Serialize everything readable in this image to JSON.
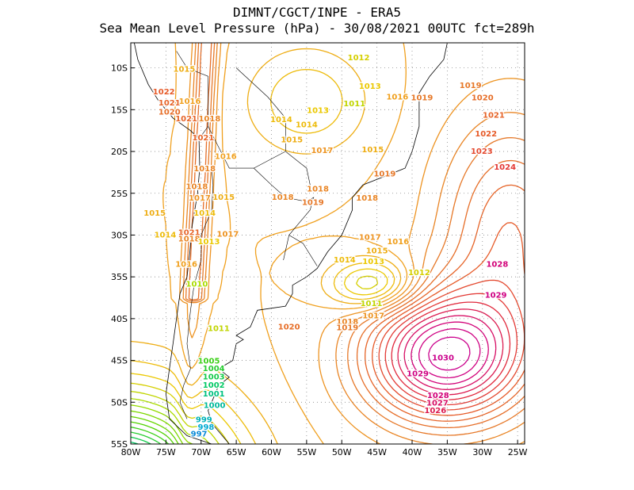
{
  "header": {
    "line1": "DIMNT/CGCT/INPE -  ERA5",
    "line2": "Sea Mean Level Pressure (hPa) - 30/08/2021 00UTC fct=289h"
  },
  "map": {
    "lon_ticks": [
      "80W",
      "75W",
      "70W",
      "65W",
      "60W",
      "55W",
      "50W",
      "45W",
      "40W",
      "35W",
      "30W",
      "25W"
    ],
    "lat_ticks": [
      "10S",
      "15S",
      "20S",
      "25S",
      "30S",
      "35S",
      "40S",
      "45S",
      "50S",
      "55S"
    ],
    "lon_range": [
      -80,
      -24
    ],
    "lat_range": [
      -55,
      -7
    ],
    "grid": true,
    "contour_interval_hpa": 1,
    "colors": {
      "low": "#6a00c8",
      "mid_low": "#00b4d0",
      "mid": "#5ad200",
      "mid_high": "#f0c000",
      "high": "#e07020",
      "very_high": "#d00080"
    },
    "labels": [
      {
        "text": "1015",
        "lon": -72.4,
        "lat": -10.2,
        "hpa": 1015
      },
      {
        "text": "1022",
        "lon": -75.3,
        "lat": -12.9,
        "hpa": 1022
      },
      {
        "text": "1021",
        "lon": -74.5,
        "lat": -14.2,
        "hpa": 1021
      },
      {
        "text": "1020",
        "lon": -74.5,
        "lat": -15.3,
        "hpa": 1020
      },
      {
        "text": "1016",
        "lon": -71.6,
        "lat": -14.0,
        "hpa": 1016
      },
      {
        "text": "1021",
        "lon": -72.1,
        "lat": -16.1,
        "hpa": 1021
      },
      {
        "text": "1018",
        "lon": -68.8,
        "lat": -16.1,
        "hpa": 1018
      },
      {
        "text": "1021",
        "lon": -69.7,
        "lat": -18.4,
        "hpa": 1021
      },
      {
        "text": "1016",
        "lon": -66.5,
        "lat": -20.6,
        "hpa": 1016
      },
      {
        "text": "1018",
        "lon": -69.5,
        "lat": -22.1,
        "hpa": 1018
      },
      {
        "text": "1018",
        "lon": -70.6,
        "lat": -24.2,
        "hpa": 1018
      },
      {
        "text": "1017",
        "lon": -70.2,
        "lat": -25.6,
        "hpa": 1017
      },
      {
        "text": "1015",
        "lon": -66.8,
        "lat": -25.5,
        "hpa": 1015
      },
      {
        "text": "1015",
        "lon": -76.6,
        "lat": -27.4,
        "hpa": 1015
      },
      {
        "text": "1014",
        "lon": -69.5,
        "lat": -27.4,
        "hpa": 1014
      },
      {
        "text": "1021",
        "lon": -71.7,
        "lat": -29.7,
        "hpa": 1021
      },
      {
        "text": "1018",
        "lon": -71.7,
        "lat": -30.5,
        "hpa": 1018
      },
      {
        "text": "1013",
        "lon": -68.9,
        "lat": -30.8,
        "hpa": 1013
      },
      {
        "text": "1014",
        "lon": -75.1,
        "lat": -30.0,
        "hpa": 1014
      },
      {
        "text": "1017",
        "lon": -66.2,
        "lat": -29.9,
        "hpa": 1017
      },
      {
        "text": "1016",
        "lon": -72.1,
        "lat": -33.5,
        "hpa": 1016
      },
      {
        "text": "1010",
        "lon": -70.6,
        "lat": -35.9,
        "hpa": 1010
      },
      {
        "text": "1011",
        "lon": -67.5,
        "lat": -41.2,
        "hpa": 1011
      },
      {
        "text": "1005",
        "lon": -68.9,
        "lat": -45.1,
        "hpa": 1005
      },
      {
        "text": "1004",
        "lon": -68.2,
        "lat": -46.0,
        "hpa": 1004
      },
      {
        "text": "1003",
        "lon": -68.2,
        "lat": -47.0,
        "hpa": 1003
      },
      {
        "text": "1002",
        "lon": -68.2,
        "lat": -48.0,
        "hpa": 1002
      },
      {
        "text": "1001",
        "lon": -68.2,
        "lat": -49.0,
        "hpa": 1001
      },
      {
        "text": "1000",
        "lon": -68.1,
        "lat": -50.4,
        "hpa": 1000
      },
      {
        "text": "999",
        "lon": -69.6,
        "lat": -52.1,
        "hpa": 999
      },
      {
        "text": "998",
        "lon": -69.3,
        "lat": -53.0,
        "hpa": 998
      },
      {
        "text": "997",
        "lon": -70.3,
        "lat": -53.8,
        "hpa": 997
      },
      {
        "text": "1012",
        "lon": -47.6,
        "lat": -8.8,
        "hpa": 1012
      },
      {
        "text": "1011",
        "lon": -48.2,
        "lat": -14.3,
        "hpa": 1011
      },
      {
        "text": "1013",
        "lon": -46.0,
        "lat": -12.2,
        "hpa": 1013
      },
      {
        "text": "1016",
        "lon": -42.1,
        "lat": -13.5,
        "hpa": 1016
      },
      {
        "text": "1013",
        "lon": -53.4,
        "lat": -15.1,
        "hpa": 1013
      },
      {
        "text": "1014",
        "lon": -58.6,
        "lat": -16.2,
        "hpa": 1014
      },
      {
        "text": "1014",
        "lon": -55.0,
        "lat": -16.8,
        "hpa": 1014
      },
      {
        "text": "1015",
        "lon": -57.1,
        "lat": -18.6,
        "hpa": 1015
      },
      {
        "text": "1017",
        "lon": -52.8,
        "lat": -19.9,
        "hpa": 1017
      },
      {
        "text": "1015",
        "lon": -45.6,
        "lat": -19.8,
        "hpa": 1015
      },
      {
        "text": "1019",
        "lon": -43.9,
        "lat": -22.7,
        "hpa": 1019
      },
      {
        "text": "1018",
        "lon": -58.4,
        "lat": -25.5,
        "hpa": 1018
      },
      {
        "text": "1018",
        "lon": -53.4,
        "lat": -24.5,
        "hpa": 1018
      },
      {
        "text": "1019",
        "lon": -54.1,
        "lat": -26.1,
        "hpa": 1019
      },
      {
        "text": "1018",
        "lon": -46.4,
        "lat": -25.6,
        "hpa": 1018
      },
      {
        "text": "1019",
        "lon": -38.6,
        "lat": -13.6,
        "hpa": 1019
      },
      {
        "text": "1019",
        "lon": -31.7,
        "lat": -12.1,
        "hpa": 1019
      },
      {
        "text": "1020",
        "lon": -30.0,
        "lat": -13.6,
        "hpa": 1020
      },
      {
        "text": "1021",
        "lon": -28.4,
        "lat": -15.7,
        "hpa": 1021
      },
      {
        "text": "1022",
        "lon": -29.5,
        "lat": -17.9,
        "hpa": 1022
      },
      {
        "text": "1023",
        "lon": -30.1,
        "lat": -20.0,
        "hpa": 1023
      },
      {
        "text": "1024",
        "lon": -26.8,
        "lat": -21.9,
        "hpa": 1024
      },
      {
        "text": "1017",
        "lon": -46.0,
        "lat": -30.3,
        "hpa": 1017
      },
      {
        "text": "1016",
        "lon": -42.0,
        "lat": -30.8,
        "hpa": 1016
      },
      {
        "text": "1015",
        "lon": -45.0,
        "lat": -31.9,
        "hpa": 1015
      },
      {
        "text": "1014",
        "lon": -49.6,
        "lat": -33.0,
        "hpa": 1014
      },
      {
        "text": "1013",
        "lon": -45.5,
        "lat": -33.2,
        "hpa": 1013
      },
      {
        "text": "1012",
        "lon": -39.0,
        "lat": -34.5,
        "hpa": 1012
      },
      {
        "text": "1011",
        "lon": -45.8,
        "lat": -38.2,
        "hpa": 1011
      },
      {
        "text": "1017",
        "lon": -45.5,
        "lat": -39.7,
        "hpa": 1017
      },
      {
        "text": "1018",
        "lon": -49.2,
        "lat": -40.4,
        "hpa": 1018
      },
      {
        "text": "1019",
        "lon": -49.2,
        "lat": -41.1,
        "hpa": 1019
      },
      {
        "text": "1020",
        "lon": -57.5,
        "lat": -41.0,
        "hpa": 1020
      },
      {
        "text": "1028",
        "lon": -27.9,
        "lat": -33.5,
        "hpa": 1028
      },
      {
        "text": "1029",
        "lon": -28.1,
        "lat": -37.2,
        "hpa": 1029
      },
      {
        "text": "1030",
        "lon": -35.6,
        "lat": -44.7,
        "hpa": 1030
      },
      {
        "text": "1029",
        "lon": -39.2,
        "lat": -46.6,
        "hpa": 1029
      },
      {
        "text": "1028",
        "lon": -36.3,
        "lat": -49.2,
        "hpa": 1028
      },
      {
        "text": "1027",
        "lon": -36.4,
        "lat": -50.1,
        "hpa": 1027
      },
      {
        "text": "1026",
        "lon": -36.7,
        "lat": -51.0,
        "hpa": 1026
      }
    ],
    "high_center": {
      "lon": -35.5,
      "lat": -44.5,
      "hpa": 1030
    },
    "low_center": {
      "lon": -45.5,
      "lat": -36.0,
      "hpa": 1010
    }
  }
}
